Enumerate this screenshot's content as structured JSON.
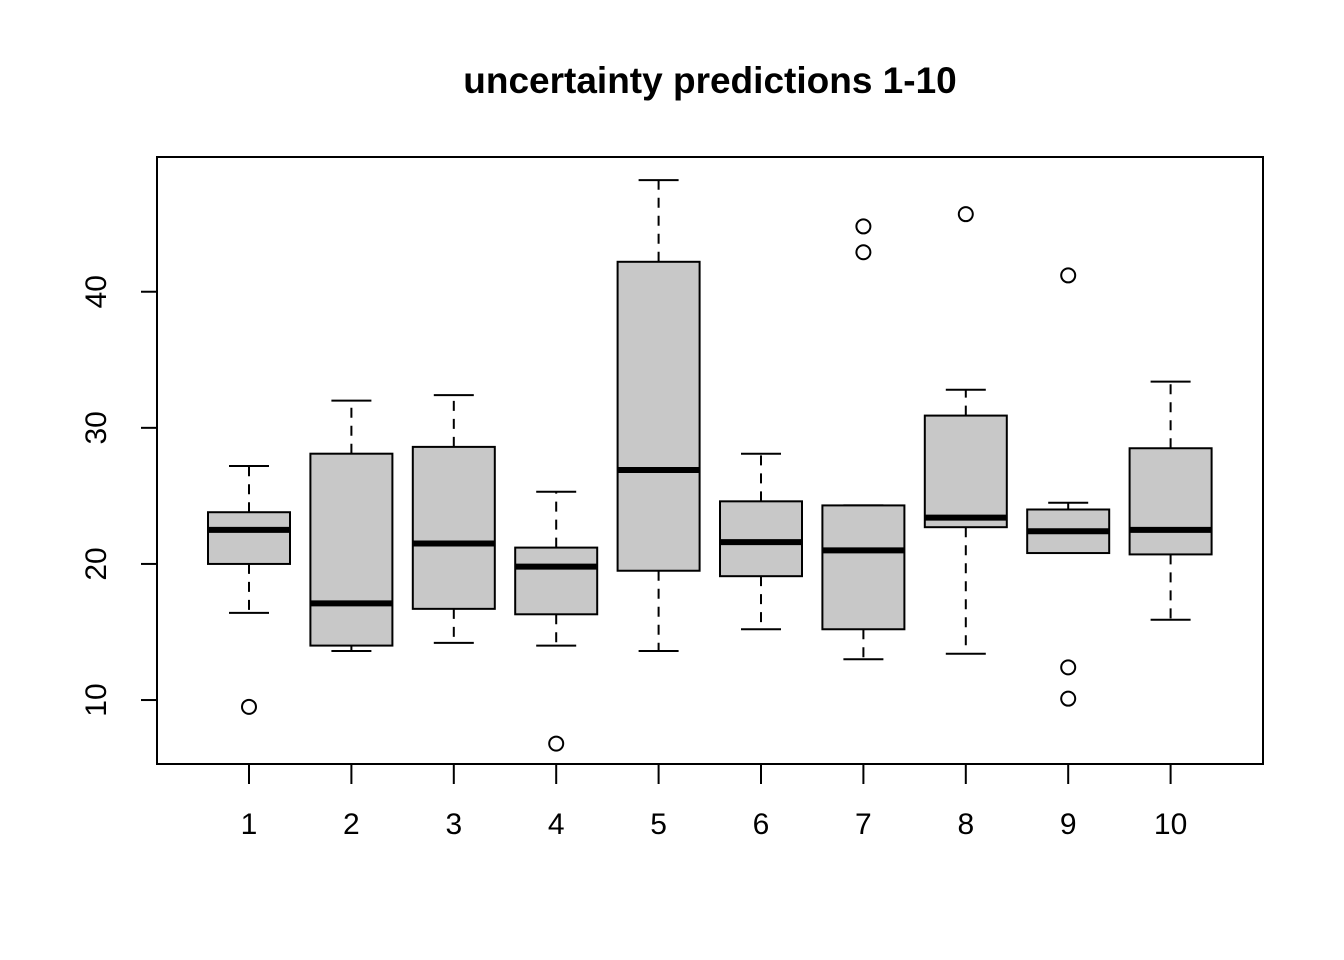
{
  "chart_data": {
    "type": "boxplot",
    "title": "uncertainty predictions 1-10",
    "xlabel": "",
    "ylabel": "",
    "ylim": [
      5.3,
      49.9
    ],
    "y_ticks": [
      "10",
      "20",
      "30",
      "40"
    ],
    "grid": false,
    "legend": "none",
    "box_fill": "#c8c8c8",
    "categories": [
      "1",
      "2",
      "3",
      "4",
      "5",
      "6",
      "7",
      "8",
      "9",
      "10"
    ],
    "boxes": [
      {
        "label": "1",
        "lower_whisker": 16.4,
        "q1": 20.0,
        "median": 22.5,
        "q3": 23.8,
        "upper_whisker": 27.2,
        "outliers": [
          9.5
        ]
      },
      {
        "label": "2",
        "lower_whisker": 13.6,
        "q1": 14.0,
        "median": 17.1,
        "q3": 28.1,
        "upper_whisker": 32.0,
        "outliers": []
      },
      {
        "label": "3",
        "lower_whisker": 14.2,
        "q1": 16.7,
        "median": 21.5,
        "q3": 28.6,
        "upper_whisker": 32.4,
        "outliers": []
      },
      {
        "label": "4",
        "lower_whisker": 14.0,
        "q1": 16.3,
        "median": 19.8,
        "q3": 21.2,
        "upper_whisker": 25.3,
        "outliers": [
          6.8
        ]
      },
      {
        "label": "5",
        "lower_whisker": 13.6,
        "q1": 19.5,
        "median": 26.9,
        "q3": 42.2,
        "upper_whisker": 48.2,
        "outliers": []
      },
      {
        "label": "6",
        "lower_whisker": 15.2,
        "q1": 19.1,
        "median": 21.6,
        "q3": 24.6,
        "upper_whisker": 28.1,
        "outliers": []
      },
      {
        "label": "7",
        "lower_whisker": 13.0,
        "q1": 15.2,
        "median": 21.0,
        "q3": 24.3,
        "upper_whisker": 24.3,
        "outliers": [
          42.9,
          44.8
        ]
      },
      {
        "label": "8",
        "lower_whisker": 13.4,
        "q1": 22.7,
        "median": 23.4,
        "q3": 30.9,
        "upper_whisker": 32.8,
        "outliers": [
          45.7
        ]
      },
      {
        "label": "9",
        "lower_whisker": 20.8,
        "q1": 20.8,
        "median": 22.4,
        "q3": 24.0,
        "upper_whisker": 24.5,
        "outliers": [
          10.1,
          12.4,
          41.2
        ]
      },
      {
        "label": "10",
        "lower_whisker": 15.9,
        "q1": 20.7,
        "median": 22.5,
        "q3": 28.5,
        "upper_whisker": 33.4,
        "outliers": []
      }
    ]
  }
}
